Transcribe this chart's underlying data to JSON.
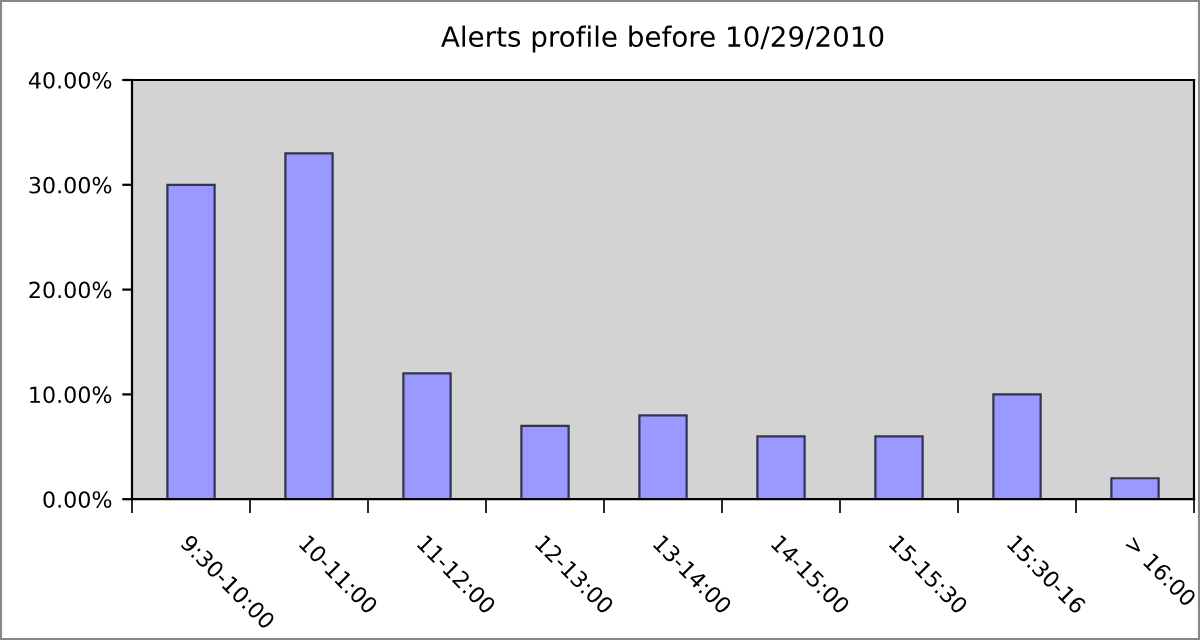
{
  "chart_data": {
    "type": "bar",
    "title": "Alerts profile before 10/29/2010",
    "categories": [
      "9:30-10:00",
      "10-11:00",
      "11-12:00",
      "12-13:00",
      "13-14:00",
      "14-15:00",
      "15-15:30",
      "15:30-16",
      "> 16:00"
    ],
    "values": [
      30,
      33,
      12,
      7,
      8,
      6,
      6,
      10,
      2
    ],
    "color": "#9999ff",
    "ylim": [
      0,
      40
    ],
    "yticks": [
      {
        "value": 0,
        "label": "0.00%"
      },
      {
        "value": 10,
        "label": "10.00%"
      },
      {
        "value": 20,
        "label": "20.00%"
      },
      {
        "value": 30,
        "label": "30.00%"
      },
      {
        "value": 40,
        "label": "40.00%"
      }
    ],
    "grid": false,
    "legend": false
  }
}
